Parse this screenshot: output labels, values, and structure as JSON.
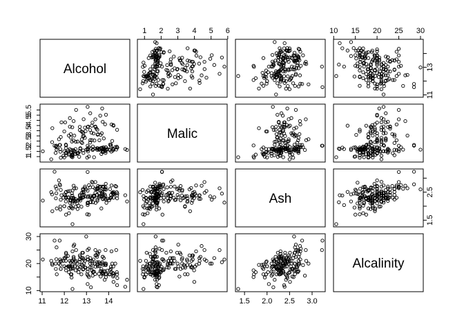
{
  "chart_data": {
    "type": "scatter",
    "kind": "scatterplot-matrix",
    "variables": [
      "Alcohol",
      "Malic",
      "Ash",
      "Alcalinity"
    ],
    "ranges": {
      "Alcohol": [
        11.03,
        14.83
      ],
      "Malic": [
        0.74,
        5.8
      ],
      "Ash": [
        1.36,
        3.23
      ],
      "Alcalinity": [
        10.6,
        30.0
      ]
    },
    "ticks": {
      "Alcohol": [
        11,
        12,
        13,
        14
      ],
      "Malic": [
        1,
        2,
        3,
        4,
        5,
        6
      ],
      "Ash": [
        1.5,
        2.0,
        2.5,
        3.0
      ],
      "Alcalinity": [
        10,
        15,
        20,
        25,
        30
      ]
    },
    "tick_labels": {
      "Alcohol_bottom": [
        "11",
        "12",
        "13",
        "14"
      ],
      "Alcohol_right": [
        "11",
        "13"
      ],
      "Malic_top": [
        "1",
        "2",
        "3",
        "4",
        "5",
        "6"
      ],
      "Malic_left": [
        "1",
        "1.5",
        "2",
        "2.5",
        "3",
        "3.5",
        "4",
        "4.5",
        "5",
        "5.5",
        "6"
      ],
      "Ash_bottom": [
        "1.5",
        "2.0",
        "2.5",
        "3.0"
      ],
      "Ash_right": [
        "1.5",
        "2.5"
      ],
      "Alcalinity_top": [
        "10",
        "15",
        "20",
        "25",
        "30"
      ],
      "Alcalinity_left": [
        "10",
        "20",
        "30"
      ]
    },
    "points": [
      [
        14.23,
        1.71,
        2.43,
        15.6
      ],
      [
        13.2,
        1.78,
        2.14,
        11.2
      ],
      [
        13.16,
        2.36,
        2.67,
        18.6
      ],
      [
        14.37,
        1.95,
        2.5,
        16.8
      ],
      [
        13.24,
        2.59,
        2.87,
        21.0
      ],
      [
        14.2,
        1.76,
        2.45,
        15.2
      ],
      [
        14.39,
        1.87,
        2.45,
        14.6
      ],
      [
        14.06,
        2.15,
        2.61,
        17.6
      ],
      [
        14.83,
        1.64,
        2.17,
        14.0
      ],
      [
        13.86,
        1.35,
        2.27,
        16.0
      ],
      [
        14.1,
        2.16,
        2.3,
        18.0
      ],
      [
        14.12,
        1.48,
        2.32,
        16.8
      ],
      [
        13.75,
        1.73,
        2.41,
        16.0
      ],
      [
        14.75,
        1.73,
        2.39,
        11.4
      ],
      [
        14.38,
        1.87,
        2.38,
        12.0
      ],
      [
        13.63,
        1.81,
        2.7,
        17.2
      ],
      [
        14.3,
        1.92,
        2.72,
        20.0
      ],
      [
        13.83,
        1.57,
        2.62,
        20.0
      ],
      [
        14.19,
        1.59,
        2.48,
        16.5
      ],
      [
        13.64,
        3.1,
        2.56,
        15.2
      ],
      [
        14.06,
        1.63,
        2.28,
        16.0
      ],
      [
        12.93,
        3.8,
        2.65,
        18.6
      ],
      [
        13.71,
        1.86,
        2.36,
        16.6
      ],
      [
        12.85,
        1.6,
        2.52,
        17.8
      ],
      [
        13.5,
        1.81,
        2.61,
        20.0
      ],
      [
        13.05,
        2.05,
        3.22,
        25.0
      ],
      [
        13.39,
        1.77,
        2.62,
        16.1
      ],
      [
        13.3,
        1.72,
        2.14,
        17.0
      ],
      [
        13.87,
        1.9,
        2.8,
        19.4
      ],
      [
        14.02,
        1.68,
        2.21,
        16.0
      ],
      [
        13.73,
        1.5,
        2.7,
        22.5
      ],
      [
        13.58,
        1.66,
        2.36,
        19.1
      ],
      [
        13.68,
        1.83,
        2.36,
        17.2
      ],
      [
        13.76,
        1.53,
        2.7,
        19.5
      ],
      [
        13.51,
        1.8,
        2.65,
        19.0
      ],
      [
        13.48,
        1.81,
        2.41,
        20.5
      ],
      [
        13.28,
        1.64,
        2.84,
        15.5
      ],
      [
        13.05,
        1.65,
        2.55,
        18.0
      ],
      [
        13.07,
        1.5,
        2.1,
        15.5
      ],
      [
        14.22,
        3.99,
        2.51,
        13.2
      ],
      [
        13.56,
        1.71,
        2.31,
        16.2
      ],
      [
        13.41,
        3.84,
        2.12,
        18.8
      ],
      [
        13.88,
        1.89,
        2.59,
        15.0
      ],
      [
        13.24,
        3.98,
        2.29,
        17.5
      ],
      [
        13.05,
        1.77,
        2.1,
        17.0
      ],
      [
        14.21,
        4.04,
        2.44,
        18.9
      ],
      [
        14.38,
        3.59,
        2.28,
        16.0
      ],
      [
        13.9,
        1.68,
        2.12,
        16.0
      ],
      [
        14.1,
        2.02,
        2.4,
        18.8
      ],
      [
        13.94,
        1.73,
        2.27,
        17.4
      ],
      [
        13.05,
        1.73,
        2.04,
        12.4
      ],
      [
        13.83,
        1.65,
        2.6,
        17.2
      ],
      [
        13.82,
        1.75,
        2.42,
        14.0
      ],
      [
        13.77,
        1.9,
        2.68,
        17.1
      ],
      [
        13.74,
        1.67,
        2.25,
        16.4
      ],
      [
        13.56,
        1.73,
        2.46,
        20.5
      ],
      [
        14.22,
        1.7,
        2.3,
        16.3
      ],
      [
        13.29,
        1.97,
        2.68,
        16.8
      ],
      [
        13.72,
        1.43,
        2.5,
        16.7
      ],
      [
        12.37,
        0.94,
        1.36,
        10.6
      ],
      [
        12.33,
        1.1,
        2.28,
        16.0
      ],
      [
        12.64,
        1.36,
        2.02,
        16.8
      ],
      [
        13.67,
        1.25,
        1.92,
        18.0
      ],
      [
        12.37,
        1.13,
        2.16,
        19.0
      ],
      [
        12.17,
        1.45,
        2.53,
        19.0
      ],
      [
        12.37,
        1.21,
        2.56,
        18.1
      ],
      [
        13.11,
        1.01,
        1.7,
        15.0
      ],
      [
        12.37,
        1.17,
        1.92,
        19.6
      ],
      [
        13.34,
        0.94,
        2.36,
        17.0
      ],
      [
        12.21,
        1.19,
        1.75,
        16.8
      ],
      [
        12.29,
        1.61,
        2.21,
        20.4
      ],
      [
        13.86,
        1.51,
        2.67,
        25.0
      ],
      [
        13.49,
        1.66,
        2.24,
        24.0
      ],
      [
        12.99,
        1.67,
        2.6,
        30.0
      ],
      [
        11.96,
        1.09,
        2.3,
        21.0
      ],
      [
        11.66,
        1.88,
        1.92,
        16.0
      ],
      [
        13.03,
        0.9,
        1.71,
        16.0
      ],
      [
        11.84,
        2.89,
        2.23,
        18.0
      ],
      [
        12.33,
        0.99,
        1.95,
        14.8
      ],
      [
        12.7,
        3.87,
        2.4,
        23.0
      ],
      [
        12.0,
        0.92,
        2.0,
        19.0
      ],
      [
        12.72,
        1.81,
        2.2,
        18.8
      ],
      [
        12.08,
        1.13,
        2.51,
        24.0
      ],
      [
        13.05,
        3.86,
        2.32,
        22.5
      ],
      [
        11.84,
        0.89,
        2.58,
        18.0
      ],
      [
        12.67,
        0.98,
        2.24,
        18.0
      ],
      [
        12.16,
        1.61,
        2.31,
        22.8
      ],
      [
        11.65,
        1.67,
        2.62,
        26.0
      ],
      [
        11.64,
        2.06,
        2.46,
        21.6
      ],
      [
        12.08,
        1.33,
        2.3,
        23.6
      ],
      [
        12.08,
        1.83,
        2.32,
        18.5
      ],
      [
        12.0,
        1.51,
        2.42,
        22.0
      ],
      [
        12.69,
        1.53,
        2.26,
        20.7
      ],
      [
        12.29,
        2.83,
        2.22,
        18.0
      ],
      [
        11.62,
        1.99,
        2.28,
        18.0
      ],
      [
        12.47,
        1.52,
        2.2,
        19.0
      ],
      [
        11.81,
        2.12,
        2.74,
        21.5
      ],
      [
        12.29,
        1.41,
        1.98,
        16.0
      ],
      [
        12.37,
        1.07,
        2.1,
        18.5
      ],
      [
        12.29,
        3.17,
        2.21,
        18.0
      ],
      [
        12.08,
        2.08,
        1.7,
        17.5
      ],
      [
        12.6,
        1.34,
        1.9,
        18.5
      ],
      [
        12.34,
        2.45,
        2.46,
        21.0
      ],
      [
        11.82,
        1.72,
        1.88,
        19.5
      ],
      [
        12.51,
        1.73,
        1.98,
        20.5
      ],
      [
        12.42,
        2.55,
        2.27,
        22.0
      ],
      [
        12.25,
        1.73,
        2.12,
        19.0
      ],
      [
        12.72,
        1.75,
        2.28,
        22.5
      ],
      [
        12.22,
        1.29,
        1.94,
        19.0
      ],
      [
        11.61,
        1.35,
        2.7,
        20.0
      ],
      [
        11.46,
        3.74,
        1.82,
        19.5
      ],
      [
        12.52,
        2.43,
        2.17,
        21.0
      ],
      [
        11.76,
        2.68,
        2.92,
        20.0
      ],
      [
        11.41,
        0.74,
        2.5,
        21.0
      ],
      [
        12.08,
        1.39,
        2.5,
        22.5
      ],
      [
        11.03,
        1.51,
        2.2,
        21.5
      ],
      [
        11.82,
        1.47,
        1.99,
        20.8
      ],
      [
        12.42,
        1.61,
        2.19,
        22.5
      ],
      [
        12.77,
        3.43,
        1.98,
        16.0
      ],
      [
        12.0,
        3.43,
        2.0,
        19.0
      ],
      [
        11.45,
        2.4,
        2.42,
        20.0
      ],
      [
        11.56,
        2.05,
        3.23,
        28.5
      ],
      [
        12.42,
        4.43,
        2.73,
        26.5
      ],
      [
        13.05,
        5.8,
        2.13,
        21.5
      ],
      [
        11.87,
        4.31,
        2.39,
        21.0
      ],
      [
        12.07,
        2.16,
        2.17,
        21.0
      ],
      [
        12.43,
        1.53,
        2.29,
        21.5
      ],
      [
        11.79,
        2.13,
        2.78,
        28.5
      ],
      [
        12.37,
        1.63,
        2.3,
        24.5
      ],
      [
        12.04,
        4.3,
        2.38,
        22.0
      ],
      [
        12.86,
        1.35,
        2.32,
        18.0
      ],
      [
        12.88,
        2.99,
        2.4,
        20.0
      ],
      [
        12.81,
        2.31,
        2.4,
        24.0
      ],
      [
        12.7,
        3.55,
        2.36,
        21.5
      ],
      [
        12.51,
        1.24,
        2.25,
        17.5
      ],
      [
        12.6,
        2.46,
        2.2,
        18.5
      ],
      [
        12.25,
        4.72,
        2.54,
        21.0
      ],
      [
        12.53,
        5.51,
        2.64,
        25.0
      ],
      [
        13.49,
        3.59,
        2.19,
        19.5
      ],
      [
        12.84,
        2.96,
        2.61,
        24.0
      ],
      [
        12.93,
        2.81,
        2.7,
        21.0
      ],
      [
        13.36,
        2.56,
        2.35,
        20.0
      ],
      [
        13.52,
        3.17,
        2.72,
        23.5
      ],
      [
        13.62,
        4.95,
        2.35,
        20.0
      ],
      [
        12.25,
        3.88,
        2.2,
        18.5
      ],
      [
        13.16,
        3.57,
        2.15,
        21.0
      ],
      [
        13.88,
        5.04,
        2.23,
        20.0
      ],
      [
        12.87,
        4.61,
        2.48,
        21.5
      ],
      [
        13.32,
        3.24,
        2.38,
        21.5
      ],
      [
        13.08,
        3.9,
        2.36,
        21.5
      ],
      [
        13.5,
        3.12,
        2.62,
        24.0
      ],
      [
        12.79,
        2.67,
        2.48,
        22.0
      ],
      [
        13.11,
        1.9,
        2.75,
        25.5
      ],
      [
        13.23,
        3.3,
        2.28,
        18.5
      ],
      [
        12.58,
        1.29,
        2.1,
        20.0
      ],
      [
        13.17,
        5.19,
        2.32,
        22.0
      ],
      [
        13.84,
        4.12,
        2.38,
        19.5
      ],
      [
        12.45,
        3.03,
        2.64,
        27.0
      ],
      [
        14.34,
        1.68,
        2.7,
        25.0
      ],
      [
        13.48,
        1.67,
        2.64,
        22.5
      ],
      [
        12.36,
        3.83,
        2.38,
        21.0
      ],
      [
        13.69,
        3.26,
        2.54,
        20.0
      ],
      [
        12.85,
        3.27,
        2.58,
        22.0
      ],
      [
        12.96,
        3.45,
        2.35,
        18.5
      ],
      [
        13.78,
        2.76,
        2.3,
        22.0
      ],
      [
        13.73,
        4.36,
        2.26,
        22.5
      ],
      [
        13.45,
        3.7,
        2.6,
        23.0
      ],
      [
        12.82,
        3.37,
        2.3,
        19.5
      ],
      [
        13.58,
        2.58,
        2.69,
        24.5
      ],
      [
        13.4,
        4.6,
        2.86,
        25.0
      ],
      [
        12.2,
        3.03,
        2.32,
        19.0
      ],
      [
        12.77,
        2.39,
        2.28,
        19.5
      ],
      [
        14.16,
        2.51,
        2.48,
        20.0
      ],
      [
        13.71,
        5.65,
        2.45,
        20.5
      ],
      [
        13.4,
        3.91,
        2.48,
        23.0
      ],
      [
        13.27,
        4.28,
        2.26,
        20.0
      ],
      [
        13.17,
        2.59,
        2.37,
        20.0
      ],
      [
        14.13,
        4.1,
        2.74,
        24.5
      ]
    ]
  }
}
